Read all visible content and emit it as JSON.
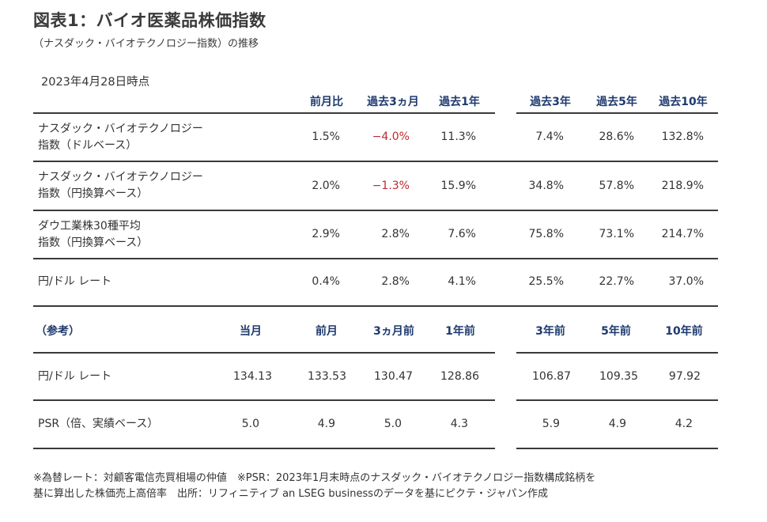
{
  "title": "図表1：バイオ医薬品株価指数",
  "subtitle": "（ナスダック・バイオテクノロジー指数）の推移",
  "as_of": "2023年4月28日時点",
  "table1": {
    "headers": [
      "前月比",
      "過去3ヵ月",
      "過去1年",
      "過去3年",
      "過去5年",
      "過去10年"
    ],
    "rows": [
      {
        "label1": "ナスダック・バイオテクノロジー",
        "label2": "指数（ドルベース）",
        "values": [
          "1.5%",
          "−4.0%",
          "11.3%",
          "7.4%",
          "28.6%",
          "132.8%"
        ]
      },
      {
        "label1": "ナスダック・バイオテクノロジー",
        "label2": "指数（円換算ベース）",
        "values": [
          "2.0%",
          "−1.3%",
          "15.9%",
          "34.8%",
          "57.8%",
          "218.9%"
        ]
      },
      {
        "label1": "ダウ工業株30種平均",
        "label2": "指数（円換算ベース）",
        "values": [
          "2.9%",
          "2.8%",
          "7.6%",
          "75.8%",
          "73.1%",
          "214.7%"
        ]
      },
      {
        "label1": "円/ドル レート",
        "label2": "",
        "values": [
          "0.4%",
          "2.8%",
          "4.1%",
          "25.5%",
          "22.7%",
          "37.0%"
        ]
      }
    ]
  },
  "table2": {
    "section_label": "（参考）",
    "headers": [
      "当月",
      "前月",
      "3ヵ月前",
      "1年前",
      "3年前",
      "5年前",
      "10年前"
    ],
    "rows": [
      {
        "label": "円/ドル レート",
        "values": [
          "134.13",
          "133.53",
          "130.47",
          "128.86",
          "106.87",
          "109.35",
          "97.92"
        ]
      },
      {
        "label": "PSR（倍、実績ベース）",
        "values": [
          "5.0",
          "4.9",
          "5.0",
          "4.3",
          "5.9",
          "4.9",
          "4.2"
        ]
      }
    ]
  },
  "notes": {
    "line1": "※為替レート：対顧客電信売買相場の仲値　※PSR：2023年1月末時点のナスダック・バイオテクノロジー指数構成銘柄を",
    "line2": "基に算出した株価売上高倍率　出所：リフィニティブ an LSEG businessのデータを基にピクテ・ジャパン作成"
  }
}
